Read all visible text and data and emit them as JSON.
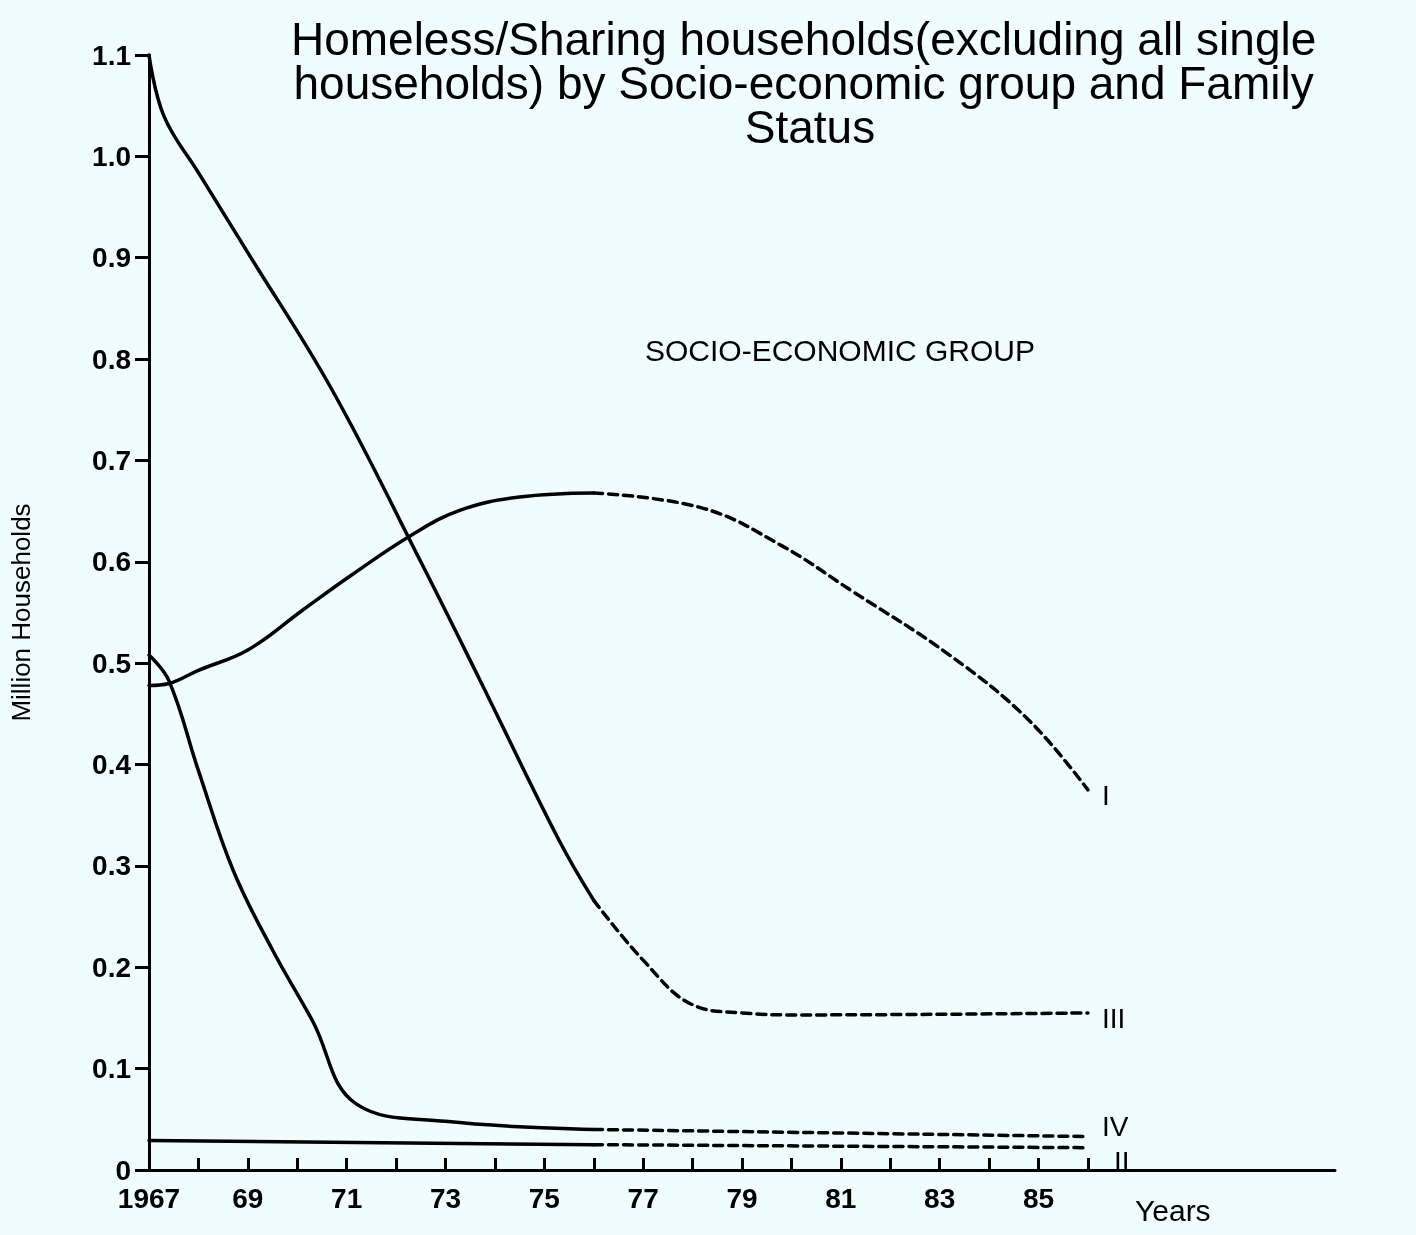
{
  "chart_data": {
    "type": "line",
    "title": "Homeless/Sharing households(excluding all single households) by Socio-economic group and Family Status",
    "xlabel": "Years",
    "ylabel": "Million Households",
    "annotations": [
      "SOCIO-ECONOMIC GROUP"
    ],
    "marker": "none",
    "xlim": [
      1967,
      1991
    ],
    "ylim": [
      0,
      1.1
    ],
    "xticks": [
      {
        "value": 1967,
        "label": "1967"
      },
      {
        "value": 1968,
        "label": null
      },
      {
        "value": 1969,
        "label": "69"
      },
      {
        "value": 1970,
        "label": null
      },
      {
        "value": 1971,
        "label": "71"
      },
      {
        "value": 1972,
        "label": null
      },
      {
        "value": 1973,
        "label": "73"
      },
      {
        "value": 1974,
        "label": null
      },
      {
        "value": 1975,
        "label": "75"
      },
      {
        "value": 1976,
        "label": null
      },
      {
        "value": 1977,
        "label": "77"
      },
      {
        "value": 1978,
        "label": null
      },
      {
        "value": 1979,
        "label": "79"
      },
      {
        "value": 1980,
        "label": null
      },
      {
        "value": 1981,
        "label": "81"
      },
      {
        "value": 1982,
        "label": null
      },
      {
        "value": 1983,
        "label": "83"
      },
      {
        "value": 1984,
        "label": null
      },
      {
        "value": 1985,
        "label": "85"
      },
      {
        "value": 1986,
        "label": null
      }
    ],
    "yticks": [
      0,
      0.1,
      0.2,
      0.3,
      0.4,
      0.5,
      0.6,
      0.7,
      0.8,
      0.9,
      {
        "value": 1.0,
        "label": "1.0"
      },
      1.1
    ],
    "series": [
      {
        "color": "#000000",
        "line_style": "solid",
        "x": [
          1967,
          1967.4,
          1968,
          1969,
          1970.1,
          1971.1,
          1972.3,
          1973.3,
          1974.5,
          1976
        ],
        "values": [
          0.478,
          0.48,
          0.493,
          0.513,
          0.552,
          0.587,
          0.626,
          0.651,
          0.664,
          0.668
        ]
      },
      {
        "name": "I",
        "color": "#000000",
        "line_style": "dashed",
        "x": [
          1976,
          1978.2,
          1979.8,
          1981.2,
          1983.2,
          1984.8,
          1986
        ],
        "values": [
          0.668,
          0.653,
          0.616,
          0.572,
          0.508,
          0.444,
          0.375
        ]
      },
      {
        "color": "#000000",
        "line_style": "solid",
        "x": [
          1967,
          1967.3,
          1968,
          1969,
          1970.7,
          1972.5,
          1973.7,
          1975.3,
          1976
        ],
        "values": [
          1.1,
          1.04,
          0.984,
          0.905,
          0.77,
          0.6,
          0.483,
          0.325,
          0.266
        ]
      },
      {
        "name": "III",
        "color": "#000000",
        "line_style": "dashed",
        "x": [
          1976,
          1977,
          1978,
          1979,
          1980.2,
          1986
        ],
        "values": [
          0.266,
          0.207,
          0.163,
          0.155,
          0.153,
          0.155
        ]
      },
      {
        "color": "#000000",
        "line_style": "solid",
        "x": [
          1967,
          1967.4,
          1968,
          1968.7,
          1969.5,
          1970.3,
          1971.2,
          1973,
          1976
        ],
        "values": [
          0.508,
          0.483,
          0.394,
          0.296,
          0.217,
          0.148,
          0.065,
          0.048,
          0.04
        ]
      },
      {
        "name": "IV",
        "color": "#000000",
        "line_style": "dashed",
        "x": [
          1976,
          1986
        ],
        "values": [
          0.04,
          0.033
        ]
      },
      {
        "color": "#000000",
        "line_style": "solid",
        "x": [
          1967,
          1976
        ],
        "values": [
          0.029,
          0.025
        ]
      },
      {
        "name": "II",
        "color": "#000000",
        "line_style": "dashed",
        "x": [
          1976,
          1986
        ],
        "values": [
          0.025,
          0.022
        ]
      }
    ]
  }
}
